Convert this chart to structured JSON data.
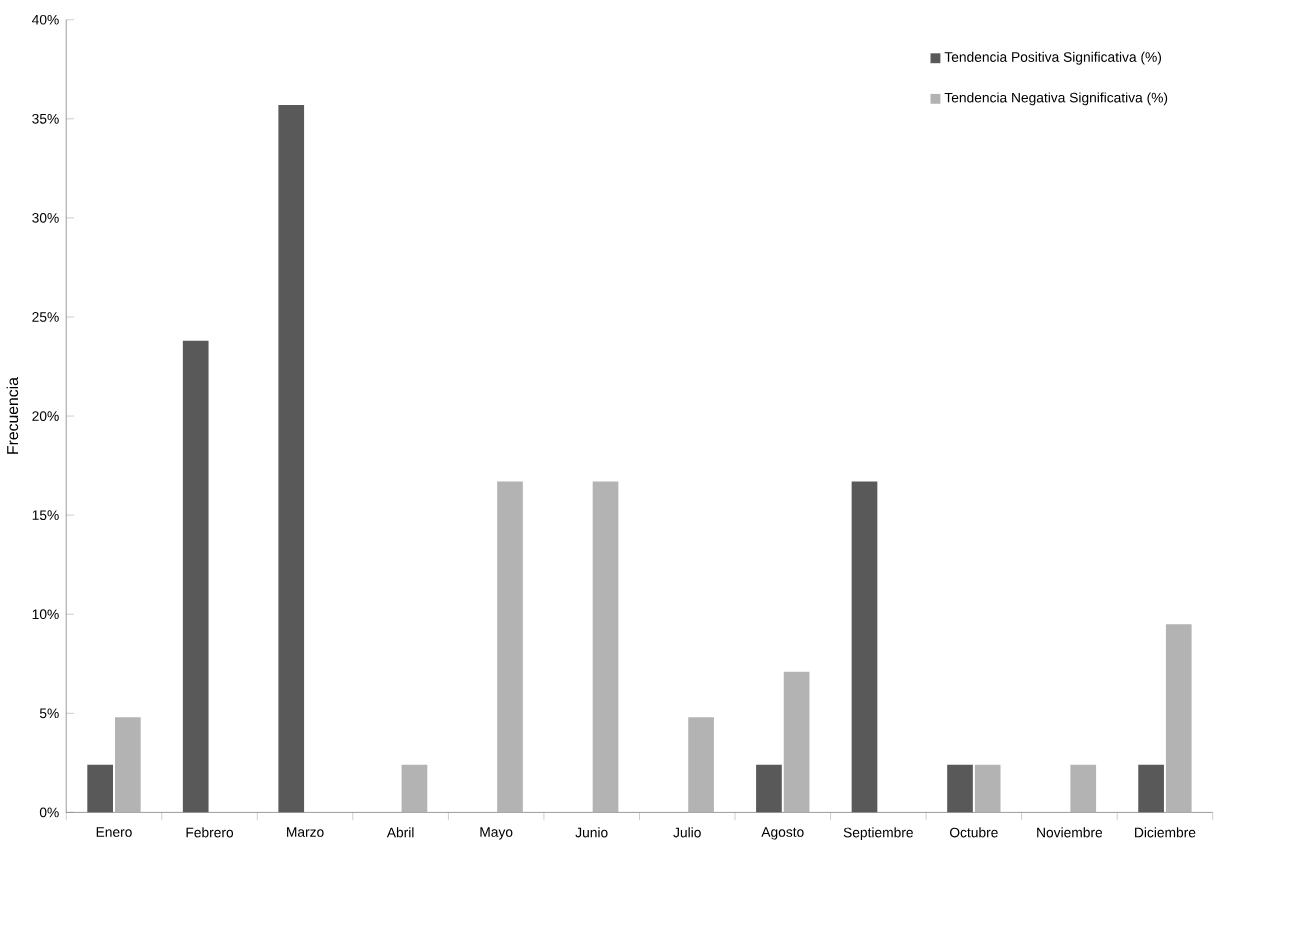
{
  "chart_data": {
    "type": "bar",
    "ylabel": "Frecuencia",
    "categories": [
      "Enero",
      "Febrero",
      "Marzo",
      "Abril",
      "Mayo",
      "Junio",
      "Julio",
      "Agosto",
      "Septiembre",
      "Octubre",
      "Noviembre",
      "Diciembre"
    ],
    "series": [
      {
        "name": "Tendencia Positiva Significativa (%)",
        "color": "#595959",
        "values": [
          2.4,
          23.8,
          35.7,
          0,
          0,
          0,
          0,
          2.4,
          16.7,
          2.4,
          0,
          2.4
        ]
      },
      {
        "name": "Tendencia Negativa Significativa (%)",
        "color": "#b3b3b3",
        "values": [
          4.8,
          0,
          0,
          2.4,
          16.7,
          16.7,
          4.8,
          7.1,
          0,
          2.4,
          2.4,
          9.5
        ]
      }
    ],
    "ylim": [
      0,
      40
    ],
    "yticks": [
      {
        "value": 0,
        "label": "0%"
      },
      {
        "value": 5,
        "label": "5%"
      },
      {
        "value": 10,
        "label": "10%"
      },
      {
        "value": 15,
        "label": "15%"
      },
      {
        "value": 20,
        "label": "20%"
      },
      {
        "value": 25,
        "label": "25%"
      },
      {
        "value": 30,
        "label": "30%"
      },
      {
        "value": 35,
        "label": "35%"
      },
      {
        "value": 40,
        "label": "40%"
      }
    ],
    "legend": "top right",
    "grid": false
  }
}
